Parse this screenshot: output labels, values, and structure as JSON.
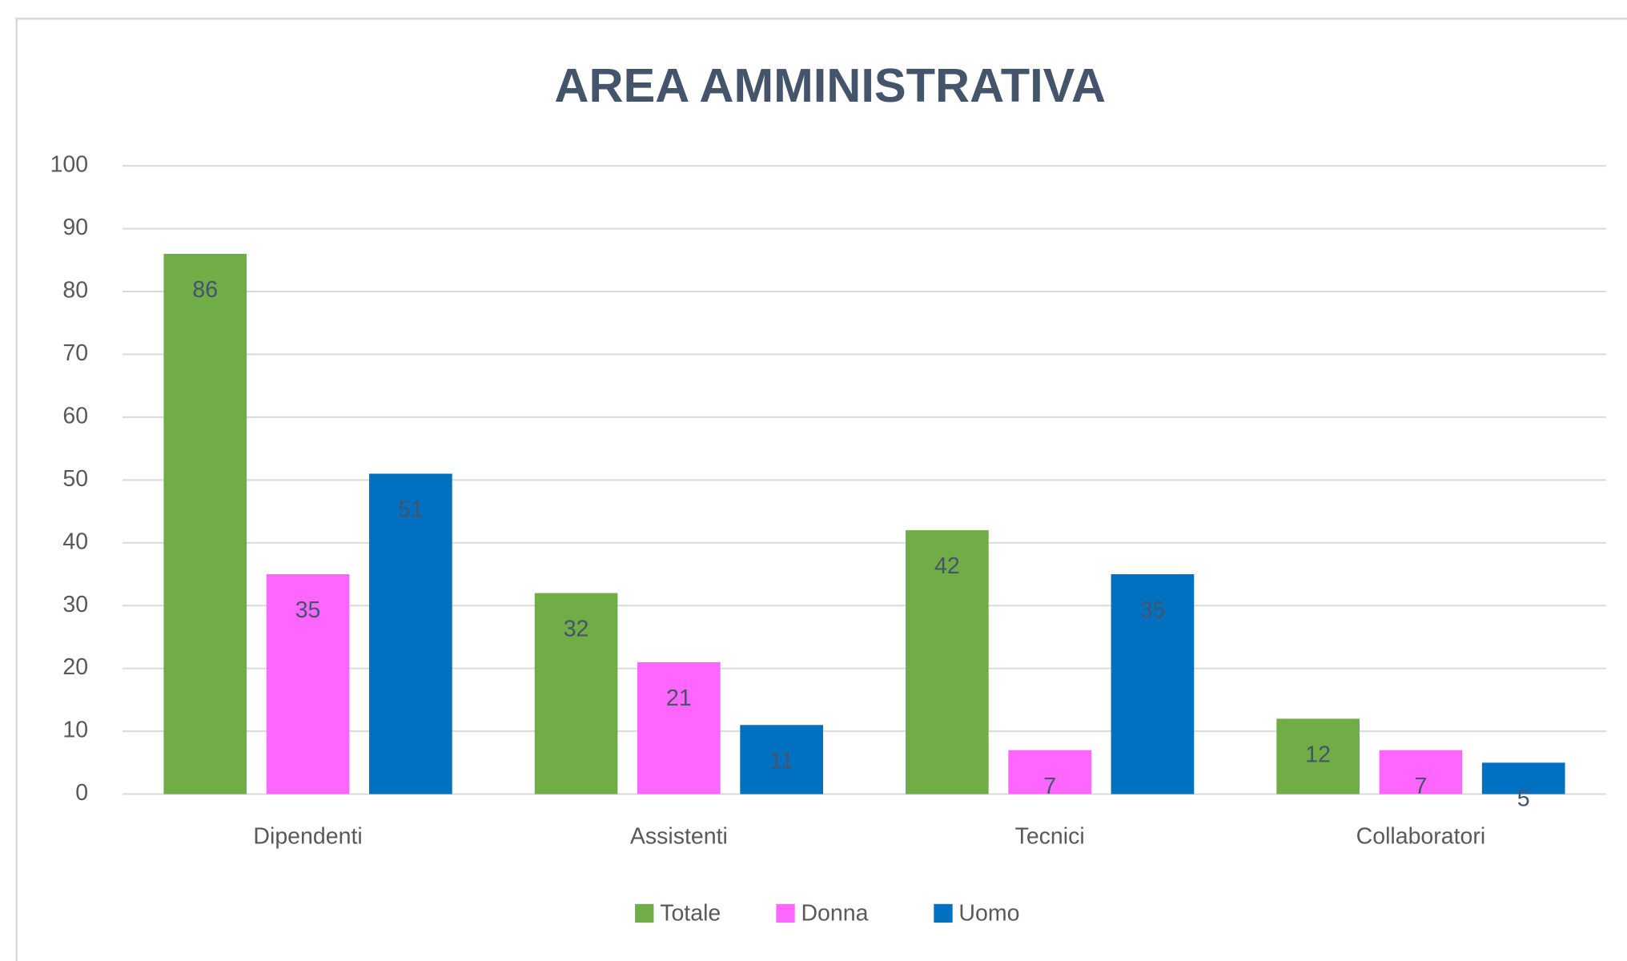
{
  "chart_data": {
    "type": "bar",
    "title": "AREA AMMINISTRATIVA",
    "categories": [
      "Dipendenti",
      "Assistenti",
      "Tecnici",
      "Collaboratori"
    ],
    "series": [
      {
        "name": "Totale",
        "color": "#70ad47",
        "values": [
          86,
          32,
          42,
          12
        ]
      },
      {
        "name": "Donna",
        "color": "#ff66ff",
        "values": [
          35,
          21,
          7,
          7
        ]
      },
      {
        "name": "Uomo",
        "color": "#0070c0",
        "values": [
          51,
          11,
          35,
          5
        ]
      }
    ],
    "ylim": [
      0,
      100
    ],
    "yticks": [
      0,
      10,
      20,
      30,
      40,
      50,
      60,
      70,
      80,
      90,
      100
    ],
    "grid": true,
    "legend": "bottom"
  }
}
